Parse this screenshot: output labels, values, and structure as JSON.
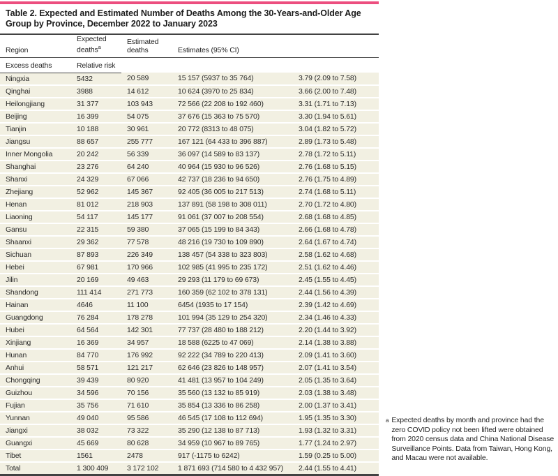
{
  "colors": {
    "accent": "#EC4E7F",
    "row_background": "#F2F0E2",
    "rule": "#424242"
  },
  "table": {
    "title": "Table 2. Expected and Estimated Number of Deaths Among the 30-Years-and-Older Age Group by Province, December 2022 to January 2023",
    "header": {
      "region": "Region",
      "expected": "Expected deaths",
      "expected_superscript": "a",
      "estimated": "Estimated deaths",
      "estimates_group": "Estimates (95% CI)",
      "excess": "Excess deaths",
      "relative_risk": "Relative risk"
    },
    "rows": [
      {
        "region": "Ningxia",
        "expected": "5432",
        "estimated": "20 589",
        "excess": "15 157 (5937 to 35 764)",
        "relative_risk": "3.79 (2.09 to 7.58)"
      },
      {
        "region": "Qinghai",
        "expected": "3988",
        "estimated": "14 612",
        "excess": "10 624 (3970 to 25 834)",
        "relative_risk": "3.66 (2.00 to 7.48)"
      },
      {
        "region": "Heilongjiang",
        "expected": "31 377",
        "estimated": "103 943",
        "excess": "72 566 (22 208 to 192 460)",
        "relative_risk": "3.31 (1.71 to 7.13)"
      },
      {
        "region": "Beijing",
        "expected": "16 399",
        "estimated": "54 075",
        "excess": "37 676 (15 363 to 75 570)",
        "relative_risk": "3.30 (1.94 to 5.61)"
      },
      {
        "region": "Tianjin",
        "expected": "10 188",
        "estimated": "30 961",
        "excess": "20 772 (8313 to 48 075)",
        "relative_risk": "3.04 (1.82 to 5.72)"
      },
      {
        "region": "Jiangsu",
        "expected": "88 657",
        "estimated": "255 777",
        "excess": "167 121 (64 433 to 396 887)",
        "relative_risk": "2.89 (1.73 to 5.48)"
      },
      {
        "region": "Inner Mongolia",
        "expected": "20 242",
        "estimated": "56 339",
        "excess": "36 097 (14 589 to 83 137)",
        "relative_risk": "2.78 (1.72 to 5.11)"
      },
      {
        "region": "Shanghai",
        "expected": "23 276",
        "estimated": "64 240",
        "excess": "40 964 (15 930 to 96 526)",
        "relative_risk": "2.76 (1.68 to 5.15)"
      },
      {
        "region": "Shanxi",
        "expected": "24 329",
        "estimated": "67 066",
        "excess": "42 737 (18 236 to 94 650)",
        "relative_risk": "2.76 (1.75 to 4.89)"
      },
      {
        "region": "Zhejiang",
        "expected": "52 962",
        "estimated": "145 367",
        "excess": "92 405 (36 005 to 217 513)",
        "relative_risk": "2.74 (1.68 to 5.11)"
      },
      {
        "region": "Henan",
        "expected": "81 012",
        "estimated": "218 903",
        "excess": "137 891 (58 198 to 308 011)",
        "relative_risk": "2.70 (1.72 to 4.80)"
      },
      {
        "region": "Liaoning",
        "expected": "54 117",
        "estimated": "145 177",
        "excess": "91 061 (37 007 to 208 554)",
        "relative_risk": "2.68 (1.68 to 4.85)"
      },
      {
        "region": "Gansu",
        "expected": "22 315",
        "estimated": "59 380",
        "excess": "37 065 (15 199 to 84 343)",
        "relative_risk": "2.66 (1.68 to 4.78)"
      },
      {
        "region": "Shaanxi",
        "expected": "29 362",
        "estimated": "77 578",
        "excess": "48 216 (19 730 to 109 890)",
        "relative_risk": "2.64 (1.67 to 4.74)"
      },
      {
        "region": "Sichuan",
        "expected": "87 893",
        "estimated": "226 349",
        "excess": "138 457 (54 338 to 323 803)",
        "relative_risk": "2.58 (1.62 to 4.68)"
      },
      {
        "region": "Hebei",
        "expected": "67 981",
        "estimated": "170 966",
        "excess": "102 985 (41 995 to 235 172)",
        "relative_risk": "2.51 (1.62 to 4.46)"
      },
      {
        "region": "Jilin",
        "expected": "20 169",
        "estimated": "49 463",
        "excess": "29 293 (11 179 to 69 673)",
        "relative_risk": "2.45 (1.55 to 4.45)"
      },
      {
        "region": "Shandong",
        "expected": "111 414",
        "estimated": "271 773",
        "excess": "160 359 (62 102 to 378 131)",
        "relative_risk": "2.44 (1.56 to 4.39)"
      },
      {
        "region": "Hainan",
        "expected": "4646",
        "estimated": "11 100",
        "excess": "6454 (1935 to 17 154)",
        "relative_risk": "2.39 (1.42 to 4.69)"
      },
      {
        "region": "Guangdong",
        "expected": "76 284",
        "estimated": "178 278",
        "excess": "101 994 (35 129 to 254 320)",
        "relative_risk": "2.34 (1.46 to 4.33)"
      },
      {
        "region": "Hubei",
        "expected": "64 564",
        "estimated": "142 301",
        "excess": "77 737 (28 480 to 188 212)",
        "relative_risk": "2.20 (1.44 to 3.92)"
      },
      {
        "region": "Xinjiang",
        "expected": "16 369",
        "estimated": "34 957",
        "excess": "18 588 (6225 to 47 069)",
        "relative_risk": "2.14 (1.38 to 3.88)"
      },
      {
        "region": "Hunan",
        "expected": "84 770",
        "estimated": "176 992",
        "excess": "92 222 (34 789 to 220 413)",
        "relative_risk": "2.09 (1.41 to 3.60)"
      },
      {
        "region": "Anhui",
        "expected": "58 571",
        "estimated": "121 217",
        "excess": "62 646 (23 826 to 148 957)",
        "relative_risk": "2.07 (1.41 to 3.54)"
      },
      {
        "region": "Chongqing",
        "expected": "39 439",
        "estimated": "80 920",
        "excess": "41 481 (13 957 to 104 249)",
        "relative_risk": "2.05 (1.35 to 3.64)"
      },
      {
        "region": "Guizhou",
        "expected": "34 596",
        "estimated": "70 156",
        "excess": "35 560 (13 132 to 85 919)",
        "relative_risk": "2.03 (1.38 to 3.48)"
      },
      {
        "region": "Fujian",
        "expected": "35 756",
        "estimated": "71 610",
        "excess": "35 854 (13 336 to 86 258)",
        "relative_risk": "2.00 (1.37 to 3.41)"
      },
      {
        "region": "Yunnan",
        "expected": "49 040",
        "estimated": "95 586",
        "excess": "46 545 (17 108 to 112 694)",
        "relative_risk": "1.95 (1.35 to 3.30)"
      },
      {
        "region": "Jiangxi",
        "expected": "38 032",
        "estimated": "73 322",
        "excess": "35 290 (12 138 to 87 713)",
        "relative_risk": "1.93 (1.32 to 3.31)"
      },
      {
        "region": "Guangxi",
        "expected": "45 669",
        "estimated": "80 628",
        "excess": "34 959 (10 967 to 89 765)",
        "relative_risk": "1.77 (1.24 to 2.97)"
      },
      {
        "region": "Tibet",
        "expected": "1561",
        "estimated": "2478",
        "excess": "917 (-1175 to 6242)",
        "relative_risk": "1.59 (0.25 to 5.00)"
      },
      {
        "region": "Total",
        "expected": "1 300 409",
        "estimated": "3 172 102",
        "excess": "1 871 693 (714 580 to 4 432 957)",
        "relative_risk": "2.44 (1.55 to 4.41)"
      }
    ]
  },
  "footnote": {
    "marker": "a",
    "text": "Expected deaths by month and province had the zero COVID policy not been lifted were obtained from 2020 census data and China National Disease Surveillance Points. Data from Taiwan, Hong Kong, and Macau were not available."
  }
}
